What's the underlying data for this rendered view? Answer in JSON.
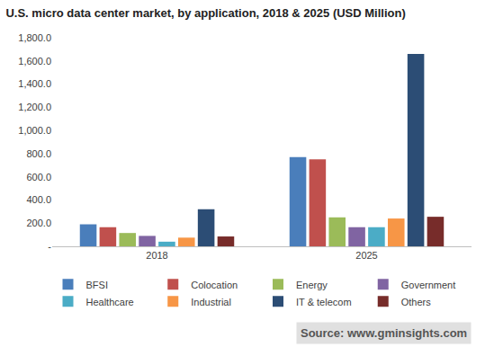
{
  "chart_data": {
    "type": "bar",
    "title": "U.S. micro data center market, by application, 2018 & 2025 (USD Million)",
    "source": "Source: www.gminsights.com",
    "categories": [
      "2018",
      "2025"
    ],
    "series": [
      {
        "name": "BFSI",
        "color": "#4a7ebb",
        "values": [
          190,
          770
        ]
      },
      {
        "name": "Colocation",
        "color": "#c0504d",
        "values": [
          165,
          750
        ]
      },
      {
        "name": "Energy",
        "color": "#9bbb59",
        "values": [
          115,
          250
        ]
      },
      {
        "name": "Government",
        "color": "#8064a2",
        "values": [
          90,
          165
        ]
      },
      {
        "name": "Healthcare",
        "color": "#4bacc6",
        "values": [
          40,
          165
        ]
      },
      {
        "name": "Industrial",
        "color": "#f79646",
        "values": [
          75,
          240
        ]
      },
      {
        "name": "IT & telecom",
        "color": "#2c4d75",
        "values": [
          320,
          1660
        ]
      },
      {
        "name": "Others",
        "color": "#772c2a",
        "values": [
          85,
          255
        ]
      }
    ],
    "ylim": [
      0,
      1800
    ],
    "yticks": [
      {
        "value": 0,
        "label": "-"
      },
      {
        "value": 200,
        "label": "200.0"
      },
      {
        "value": 400,
        "label": "400.0"
      },
      {
        "value": 600,
        "label": "600.0"
      },
      {
        "value": 800,
        "label": "800.0"
      },
      {
        "value": 1000,
        "label": "1,000.0"
      },
      {
        "value": 1200,
        "label": "1,200.0"
      },
      {
        "value": 1400,
        "label": "1,400.0"
      },
      {
        "value": 1600,
        "label": "1,600.0"
      },
      {
        "value": 1800,
        "label": "1,800.0"
      }
    ],
    "grid": false,
    "legend": "bottom"
  }
}
